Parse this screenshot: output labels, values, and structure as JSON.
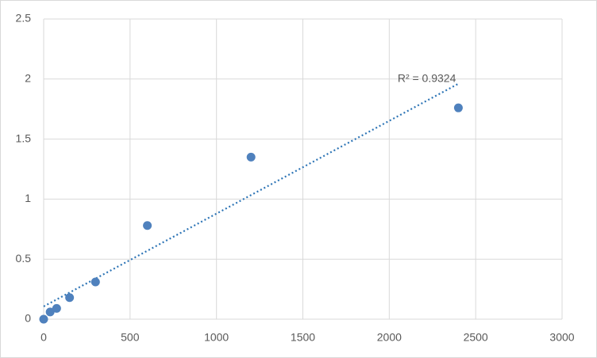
{
  "chart_data": {
    "type": "scatter",
    "x": [
      0,
      37.5,
      75,
      150,
      300,
      600,
      1200,
      2400
    ],
    "series": [
      {
        "values": [
          0,
          0.06,
          0.09,
          0.18,
          0.31,
          0.78,
          1.35,
          1.76
        ],
        "color": "#4f81bd"
      }
    ],
    "xlim": [
      0,
      3000
    ],
    "xticks": [
      0,
      500,
      1000,
      1500,
      2000,
      2500,
      3000
    ],
    "ylim": [
      0,
      2.5
    ],
    "yticks": [
      0,
      0.5,
      1,
      1.5,
      2,
      2.5
    ],
    "grid": true,
    "trendline": "linear",
    "trendline_color": "#2e75b6",
    "annotation": "R² = 0.9324"
  }
}
